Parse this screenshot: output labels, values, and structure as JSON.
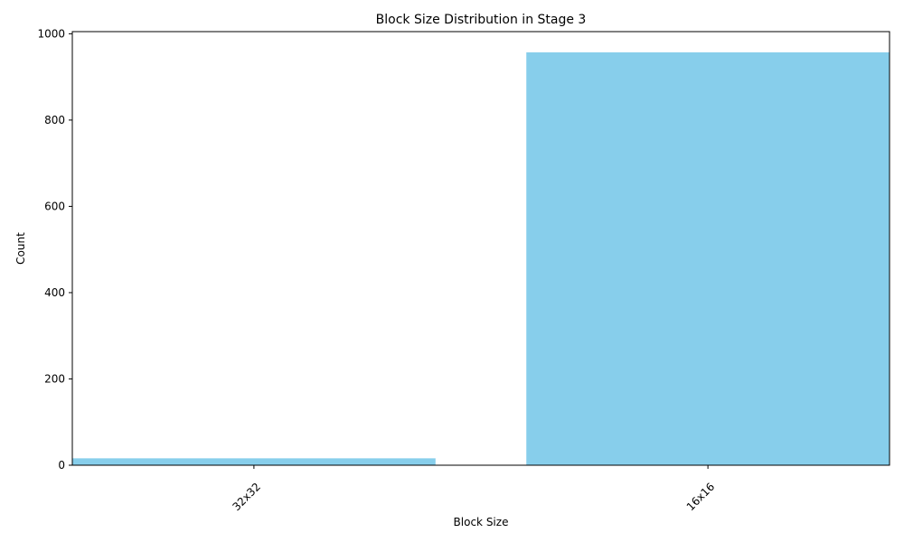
{
  "chart_data": {
    "type": "bar",
    "title": "Block Size Distribution in Stage 3",
    "xlabel": "Block Size",
    "ylabel": "Count",
    "categories": [
      "32x32",
      "16x16"
    ],
    "values": [
      16,
      957
    ],
    "ylim": [
      0,
      1005
    ],
    "yticks": [
      0,
      200,
      400,
      600,
      800,
      1000
    ],
    "bar_color": "#87CEEB",
    "grid": false,
    "legend": "none",
    "xtick_rotation_deg": 45
  }
}
